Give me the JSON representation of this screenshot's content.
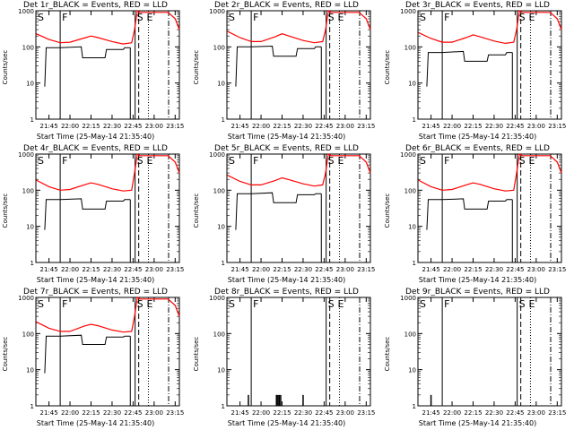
{
  "chart_data": [
    {
      "type": "line",
      "title": "Det 1r_BLACK = Events, RED = LLD",
      "xlabel": "Start Time (25-May-14 21:35:40)",
      "ylabel": "Counts/sec",
      "x_ticks": [
        "21:45",
        "22:00",
        "22:15",
        "22:30",
        "22:45",
        "23:00",
        "23:15"
      ],
      "y_ticks": [
        "1",
        "10",
        "100",
        "1000"
      ],
      "ylim": [
        1,
        1000
      ],
      "xlim_minutes": [
        "21:35:40",
        "23:18"
      ],
      "scale": "log",
      "markers": [
        {
          "label": "S",
          "time": "21:36"
        },
        {
          "label": "F",
          "time": "21:53"
        },
        {
          "label": "S",
          "time": "22:49"
        },
        {
          "label": "E",
          "time": "22:54"
        }
      ],
      "red_series": {
        "name": "LLD",
        "color": "#ff0000",
        "x": [
          "21:36",
          "21:45",
          "21:53",
          "22:00",
          "22:10",
          "22:15",
          "22:20",
          "22:30",
          "22:38",
          "22:44",
          "22:46",
          "22:48",
          "22:50",
          "23:10",
          "23:15",
          "23:18"
        ],
        "y": [
          230,
          160,
          130,
          135,
          175,
          200,
          180,
          140,
          120,
          130,
          300,
          1000,
          900,
          900,
          600,
          300
        ]
      },
      "black_series": {
        "name": "Events",
        "color": "#000000",
        "x": [
          "21:42",
          "21:43",
          "21:53",
          "22:08",
          "22:09",
          "22:25",
          "22:26",
          "22:38",
          "22:39",
          "22:43"
        ],
        "y": [
          8,
          95,
          95,
          100,
          50,
          50,
          85,
          85,
          95,
          95
        ]
      }
    },
    {
      "type": "line",
      "title": "Det 2r_BLACK = Events, RED = LLD",
      "xlabel": "Start Time (25-May-14 21:35:40)",
      "ylabel": "Counts/sec",
      "x_ticks": [
        "21:45",
        "22:00",
        "22:15",
        "22:30",
        "22:45",
        "23:00",
        "23:15"
      ],
      "y_ticks": [
        "1",
        "10",
        "100",
        "1000"
      ],
      "ylim": [
        1,
        1000
      ],
      "xlim_minutes": [
        "21:35:40",
        "23:18"
      ],
      "scale": "log",
      "markers": [
        {
          "label": "S",
          "time": "21:36"
        },
        {
          "label": "F",
          "time": "21:53"
        },
        {
          "label": "S",
          "time": "22:49"
        },
        {
          "label": "E",
          "time": "22:54"
        }
      ],
      "red_series": {
        "name": "LLD",
        "color": "#ff0000",
        "x": [
          "21:36",
          "21:45",
          "21:53",
          "22:00",
          "22:10",
          "22:15",
          "22:20",
          "22:30",
          "22:38",
          "22:44",
          "22:46",
          "22:48",
          "22:50",
          "23:10",
          "23:15",
          "23:18"
        ],
        "y": [
          270,
          180,
          140,
          140,
          190,
          230,
          200,
          150,
          130,
          140,
          300,
          1000,
          900,
          900,
          600,
          300
        ]
      },
      "black_series": {
        "name": "Events",
        "color": "#000000",
        "x": [
          "21:42",
          "21:43",
          "21:53",
          "22:08",
          "22:09",
          "22:25",
          "22:26",
          "22:38",
          "22:39",
          "22:43"
        ],
        "y": [
          8,
          100,
          100,
          105,
          55,
          55,
          90,
          90,
          100,
          100
        ]
      }
    },
    {
      "type": "line",
      "title": "Det 3r_BLACK = Events, RED = LLD",
      "xlabel": "Start Time (25-May-14 21:35:40)",
      "ylabel": "Counts/sec",
      "x_ticks": [
        "21:45",
        "22:00",
        "22:15",
        "22:30",
        "22:45",
        "23:00",
        "23:15"
      ],
      "y_ticks": [
        "1",
        "10",
        "100",
        "1000"
      ],
      "ylim": [
        1,
        1000
      ],
      "xlim_minutes": [
        "21:35:40",
        "23:18"
      ],
      "scale": "log",
      "markers": [
        {
          "label": "S",
          "time": "21:36"
        },
        {
          "label": "F",
          "time": "21:53"
        },
        {
          "label": "S",
          "time": "22:49"
        },
        {
          "label": "E",
          "time": "22:54"
        }
      ],
      "red_series": {
        "name": "LLD",
        "color": "#ff0000",
        "x": [
          "21:36",
          "21:45",
          "21:53",
          "22:00",
          "22:10",
          "22:15",
          "22:20",
          "22:30",
          "22:38",
          "22:44",
          "22:46",
          "22:48",
          "22:50",
          "23:10",
          "23:15",
          "23:18"
        ],
        "y": [
          250,
          170,
          135,
          135,
          180,
          215,
          190,
          145,
          125,
          135,
          300,
          1000,
          900,
          900,
          600,
          300
        ]
      },
      "black_series": {
        "name": "Events",
        "color": "#000000",
        "x": [
          "21:42",
          "21:43",
          "21:53",
          "22:08",
          "22:09",
          "22:25",
          "22:26",
          "22:38",
          "22:39",
          "22:43"
        ],
        "y": [
          8,
          70,
          70,
          75,
          40,
          40,
          60,
          60,
          70,
          70
        ]
      }
    },
    {
      "type": "line",
      "title": "Det 4r_BLACK = Events, RED = LLD",
      "xlabel": "Start Time (25-May-14 21:35:40)",
      "ylabel": "Counts/sec",
      "x_ticks": [
        "21:45",
        "22:00",
        "22:15",
        "22:30",
        "22:45",
        "23:00",
        "23:15"
      ],
      "y_ticks": [
        "1",
        "10",
        "100",
        "1000"
      ],
      "ylim": [
        1,
        1000
      ],
      "xlim_minutes": [
        "21:35:40",
        "23:18"
      ],
      "scale": "log",
      "markers": [
        {
          "label": "S",
          "time": "21:36"
        },
        {
          "label": "F",
          "time": "21:53"
        },
        {
          "label": "S",
          "time": "22:49"
        },
        {
          "label": "E",
          "time": "22:54"
        }
      ],
      "red_series": {
        "name": "LLD",
        "color": "#ff0000",
        "x": [
          "21:36",
          "21:45",
          "21:53",
          "22:00",
          "22:10",
          "22:15",
          "22:20",
          "22:30",
          "22:38",
          "22:44",
          "22:46",
          "22:48",
          "22:50",
          "23:10",
          "23:15",
          "23:18"
        ],
        "y": [
          190,
          125,
          100,
          105,
          140,
          160,
          145,
          110,
          95,
          100,
          300,
          1000,
          900,
          900,
          600,
          300
        ]
      },
      "black_series": {
        "name": "Events",
        "color": "#000000",
        "x": [
          "21:42",
          "21:43",
          "21:53",
          "22:08",
          "22:09",
          "22:25",
          "22:26",
          "22:38",
          "22:39",
          "22:43"
        ],
        "y": [
          8,
          55,
          55,
          58,
          30,
          30,
          50,
          50,
          55,
          55
        ]
      }
    },
    {
      "type": "line",
      "title": "Det 5r_BLACK = Events, RED = LLD",
      "xlabel": "Start Time (25-May-14 21:35:40)",
      "ylabel": "Counts/sec",
      "x_ticks": [
        "21:45",
        "22:00",
        "22:15",
        "22:30",
        "22:45",
        "23:00",
        "23:15"
      ],
      "y_ticks": [
        "1",
        "10",
        "100",
        "1000"
      ],
      "ylim": [
        1,
        1000
      ],
      "xlim_minutes": [
        "21:35:40",
        "23:18"
      ],
      "scale": "log",
      "markers": [
        {
          "label": "S",
          "time": "21:36"
        },
        {
          "label": "F",
          "time": "21:53"
        },
        {
          "label": "S",
          "time": "22:49"
        },
        {
          "label": "E",
          "time": "22:54"
        }
      ],
      "red_series": {
        "name": "LLD",
        "color": "#ff0000",
        "x": [
          "21:36",
          "21:45",
          "21:53",
          "22:00",
          "22:10",
          "22:15",
          "22:20",
          "22:30",
          "22:38",
          "22:44",
          "22:46",
          "22:48",
          "22:50",
          "23:10",
          "23:15",
          "23:18"
        ],
        "y": [
          260,
          175,
          140,
          140,
          185,
          220,
          195,
          150,
          130,
          140,
          300,
          1000,
          900,
          900,
          600,
          300
        ]
      },
      "black_series": {
        "name": "Events",
        "color": "#000000",
        "x": [
          "21:42",
          "21:43",
          "21:53",
          "22:08",
          "22:09",
          "22:25",
          "22:26",
          "22:38",
          "22:39",
          "22:43"
        ],
        "y": [
          8,
          80,
          80,
          85,
          45,
          45,
          75,
          75,
          80,
          80
        ]
      }
    },
    {
      "type": "line",
      "title": "Det 6r_BLACK = Events, RED = LLD",
      "xlabel": "Start Time (25-May-14 21:35:40)",
      "ylabel": "Counts/sec",
      "x_ticks": [
        "21:45",
        "22:00",
        "22:15",
        "22:30",
        "22:45",
        "23:00",
        "23:15"
      ],
      "y_ticks": [
        "1",
        "10",
        "100",
        "1000"
      ],
      "ylim": [
        1,
        1000
      ],
      "xlim_minutes": [
        "21:35:40",
        "23:18"
      ],
      "scale": "log",
      "markers": [
        {
          "label": "S",
          "time": "21:36"
        },
        {
          "label": "F",
          "time": "21:53"
        },
        {
          "label": "S",
          "time": "22:49"
        },
        {
          "label": "E",
          "time": "22:54"
        }
      ],
      "red_series": {
        "name": "LLD",
        "color": "#ff0000",
        "x": [
          "21:36",
          "21:45",
          "21:53",
          "22:00",
          "22:10",
          "22:15",
          "22:20",
          "22:30",
          "22:38",
          "22:44",
          "22:46",
          "22:48",
          "22:50",
          "23:10",
          "23:15",
          "23:18"
        ],
        "y": [
          190,
          125,
          100,
          105,
          140,
          160,
          145,
          110,
          95,
          100,
          300,
          1000,
          900,
          900,
          600,
          300
        ]
      },
      "black_series": {
        "name": "Events",
        "color": "#000000",
        "x": [
          "21:42",
          "21:43",
          "21:53",
          "22:08",
          "22:09",
          "22:25",
          "22:26",
          "22:38",
          "22:39",
          "22:43"
        ],
        "y": [
          8,
          55,
          55,
          58,
          30,
          30,
          50,
          50,
          55,
          55
        ]
      }
    },
    {
      "type": "line",
      "title": "Det 7r_BLACK = Events, RED = LLD",
      "xlabel": "Start Time (25-May-14 21:35:40)",
      "ylabel": "Counts/sec",
      "x_ticks": [
        "21:45",
        "22:00",
        "22:15",
        "22:30",
        "22:45",
        "23:00",
        "23:15"
      ],
      "y_ticks": [
        "1",
        "10",
        "100",
        "1000"
      ],
      "ylim": [
        1,
        1000
      ],
      "xlim_minutes": [
        "21:35:40",
        "23:18"
      ],
      "scale": "log",
      "markers": [
        {
          "label": "S",
          "time": "21:36"
        },
        {
          "label": "F",
          "time": "21:53"
        },
        {
          "label": "S",
          "time": "22:49"
        },
        {
          "label": "E",
          "time": "22:54"
        }
      ],
      "red_series": {
        "name": "LLD",
        "color": "#ff0000",
        "x": [
          "21:36",
          "21:45",
          "21:53",
          "22:00",
          "22:10",
          "22:15",
          "22:20",
          "22:30",
          "22:38",
          "22:44",
          "22:46",
          "22:48",
          "22:50",
          "23:10",
          "23:15",
          "23:18"
        ],
        "y": [
          210,
          140,
          115,
          115,
          160,
          180,
          165,
          125,
          110,
          115,
          300,
          1000,
          900,
          900,
          600,
          300
        ]
      },
      "black_series": {
        "name": "Events",
        "color": "#000000",
        "x": [
          "21:42",
          "21:43",
          "21:53",
          "22:08",
          "22:09",
          "22:25",
          "22:26",
          "22:38",
          "22:39",
          "22:43"
        ],
        "y": [
          8,
          85,
          85,
          90,
          50,
          50,
          80,
          80,
          85,
          85
        ]
      }
    },
    {
      "type": "line",
      "title": "Det 8r_BLACK = Events, RED = LLD",
      "xlabel": "Start Time (25-May-14 21:35:40)",
      "ylabel": "Counts/sec",
      "x_ticks": [
        "21:45",
        "22:00",
        "22:15",
        "22:30",
        "22:45",
        "23:00",
        "23:15"
      ],
      "y_ticks": [
        "1",
        "10",
        "100",
        "1000"
      ],
      "ylim": [
        1,
        1000
      ],
      "xlim_minutes": [
        "21:35:40",
        "23:18"
      ],
      "scale": "log",
      "markers": [
        {
          "label": "S",
          "time": "21:36"
        },
        {
          "label": "F",
          "time": "21:53"
        },
        {
          "label": "S",
          "time": "22:49"
        },
        {
          "label": "E",
          "time": "22:54"
        }
      ],
      "red_series": {
        "name": "LLD",
        "color": "#ff0000",
        "x": [],
        "y": []
      },
      "black_series": {
        "name": "Events",
        "color": "#000000",
        "spikes": [
          {
            "time": "21:51",
            "value": 2
          },
          {
            "time": "22:11",
            "value": 2
          },
          {
            "time": "22:12",
            "value": 2
          },
          {
            "time": "22:13",
            "value": 2
          },
          {
            "time": "22:14",
            "value": 2
          },
          {
            "time": "22:30",
            "value": 2
          }
        ]
      }
    },
    {
      "type": "line",
      "title": "Det 9r_BLACK = Events, RED = LLD",
      "xlabel": "Start Time (25-May-14 21:35:40)",
      "ylabel": "Counts/sec",
      "x_ticks": [
        "21:45",
        "22:00",
        "22:15",
        "22:30",
        "22:45",
        "23:00",
        "23:15"
      ],
      "y_ticks": [
        "1",
        "10",
        "100",
        "1000"
      ],
      "ylim": [
        1,
        1000
      ],
      "xlim_minutes": [
        "21:35:40",
        "23:18"
      ],
      "scale": "log",
      "markers": [
        {
          "label": "S",
          "time": "21:36"
        },
        {
          "label": "F",
          "time": "21:53"
        },
        {
          "label": "S",
          "time": "22:49"
        },
        {
          "label": "E",
          "time": "22:54"
        }
      ],
      "red_series": {
        "name": "LLD",
        "color": "#ff0000",
        "x": [],
        "y": []
      },
      "black_series": {
        "name": "Events",
        "color": "#000000",
        "spikes": [
          {
            "time": "21:45",
            "value": 2
          }
        ]
      }
    }
  ]
}
